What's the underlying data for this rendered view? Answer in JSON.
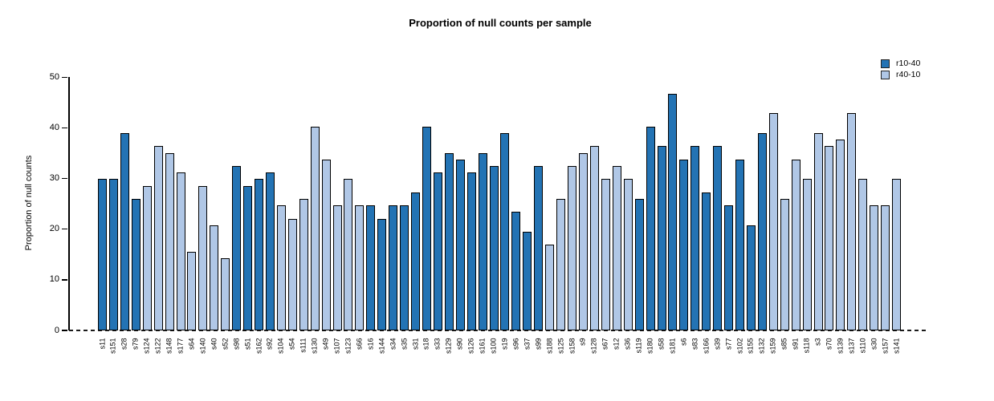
{
  "chart_data": {
    "type": "bar",
    "title": "Proportion of null counts per sample",
    "xlabel": "",
    "ylabel": "Proportion of null counts",
    "ylim": [
      0,
      50
    ],
    "yticks": [
      0,
      10,
      20,
      30,
      40,
      50
    ],
    "grid": false,
    "legend_position": "top-right",
    "zero_line_style": "dashed-black",
    "series": [
      {
        "name": "r10-40",
        "color": "#2373b4"
      },
      {
        "name": "r40-10",
        "color": "#b0c7e6"
      }
    ],
    "bars": [
      {
        "label": "s11",
        "series": "r10-40",
        "value": 29.87
      },
      {
        "label": "s151",
        "series": "r10-40",
        "value": 29.87
      },
      {
        "label": "s28",
        "series": "r10-40",
        "value": 38.96
      },
      {
        "label": "s79",
        "series": "r10-40",
        "value": 25.97
      },
      {
        "label": "s124",
        "series": "r40-10",
        "value": 28.57
      },
      {
        "label": "s122",
        "series": "r40-10",
        "value": 36.36
      },
      {
        "label": "s148",
        "series": "r40-10",
        "value": 35.06
      },
      {
        "label": "s177",
        "series": "r40-10",
        "value": 31.17
      },
      {
        "label": "s64",
        "series": "r40-10",
        "value": 15.58
      },
      {
        "label": "s140",
        "series": "r40-10",
        "value": 28.57
      },
      {
        "label": "s40",
        "series": "r40-10",
        "value": 20.78
      },
      {
        "label": "s52",
        "series": "r40-10",
        "value": 14.29
      },
      {
        "label": "s98",
        "series": "r10-40",
        "value": 32.47
      },
      {
        "label": "s51",
        "series": "r10-40",
        "value": 28.57
      },
      {
        "label": "s162",
        "series": "r10-40",
        "value": 29.87
      },
      {
        "label": "s92",
        "series": "r10-40",
        "value": 31.17
      },
      {
        "label": "s104",
        "series": "r40-10",
        "value": 24.68
      },
      {
        "label": "s54",
        "series": "r40-10",
        "value": 22.08
      },
      {
        "label": "s111",
        "series": "r40-10",
        "value": 25.97
      },
      {
        "label": "s130",
        "series": "r40-10",
        "value": 40.26
      },
      {
        "label": "s49",
        "series": "r40-10",
        "value": 33.77
      },
      {
        "label": "s107",
        "series": "r40-10",
        "value": 24.68
      },
      {
        "label": "s123",
        "series": "r40-10",
        "value": 29.87
      },
      {
        "label": "s66",
        "series": "r40-10",
        "value": 24.68
      },
      {
        "label": "s16",
        "series": "r10-40",
        "value": 24.68
      },
      {
        "label": "s144",
        "series": "r10-40",
        "value": 22.08
      },
      {
        "label": "s34",
        "series": "r10-40",
        "value": 24.68
      },
      {
        "label": "s35",
        "series": "r10-40",
        "value": 24.68
      },
      {
        "label": "s31",
        "series": "r10-40",
        "value": 27.27
      },
      {
        "label": "s18",
        "series": "r10-40",
        "value": 40.26
      },
      {
        "label": "s33",
        "series": "r10-40",
        "value": 31.17
      },
      {
        "label": "s129",
        "series": "r10-40",
        "value": 35.06
      },
      {
        "label": "s90",
        "series": "r10-40",
        "value": 33.77
      },
      {
        "label": "s126",
        "series": "r10-40",
        "value": 31.17
      },
      {
        "label": "s161",
        "series": "r10-40",
        "value": 35.06
      },
      {
        "label": "s100",
        "series": "r10-40",
        "value": 32.47
      },
      {
        "label": "s19",
        "series": "r10-40",
        "value": 38.96
      },
      {
        "label": "s96",
        "series": "r10-40",
        "value": 23.38
      },
      {
        "label": "s37",
        "series": "r10-40",
        "value": 19.48
      },
      {
        "label": "s99",
        "series": "r10-40",
        "value": 32.47
      },
      {
        "label": "s188",
        "series": "r40-10",
        "value": 16.88
      },
      {
        "label": "s125",
        "series": "r40-10",
        "value": 25.97
      },
      {
        "label": "s158",
        "series": "r40-10",
        "value": 32.47
      },
      {
        "label": "s9",
        "series": "r40-10",
        "value": 35.06
      },
      {
        "label": "s128",
        "series": "r40-10",
        "value": 36.36
      },
      {
        "label": "s67",
        "series": "r40-10",
        "value": 29.87
      },
      {
        "label": "s12",
        "series": "r40-10",
        "value": 32.47
      },
      {
        "label": "s36",
        "series": "r40-10",
        "value": 29.87
      },
      {
        "label": "s119",
        "series": "r10-40",
        "value": 25.97
      },
      {
        "label": "s180",
        "series": "r10-40",
        "value": 40.26
      },
      {
        "label": "s58",
        "series": "r10-40",
        "value": 36.36
      },
      {
        "label": "s181",
        "series": "r10-40",
        "value": 46.75
      },
      {
        "label": "s6",
        "series": "r10-40",
        "value": 33.77
      },
      {
        "label": "s83",
        "series": "r10-40",
        "value": 36.36
      },
      {
        "label": "s166",
        "series": "r10-40",
        "value": 27.27
      },
      {
        "label": "s39",
        "series": "r10-40",
        "value": 36.36
      },
      {
        "label": "s77",
        "series": "r10-40",
        "value": 24.68
      },
      {
        "label": "s102",
        "series": "r10-40",
        "value": 33.77
      },
      {
        "label": "s155",
        "series": "r10-40",
        "value": 20.78
      },
      {
        "label": "s132",
        "series": "r10-40",
        "value": 38.96
      },
      {
        "label": "s159",
        "series": "r40-10",
        "value": 42.86
      },
      {
        "label": "s85",
        "series": "r40-10",
        "value": 25.97
      },
      {
        "label": "s91",
        "series": "r40-10",
        "value": 33.77
      },
      {
        "label": "s118",
        "series": "r40-10",
        "value": 29.87
      },
      {
        "label": "s3",
        "series": "r40-10",
        "value": 38.96
      },
      {
        "label": "s70",
        "series": "r40-10",
        "value": 36.36
      },
      {
        "label": "s139",
        "series": "r40-10",
        "value": 37.66
      },
      {
        "label": "s137",
        "series": "r40-10",
        "value": 42.86
      },
      {
        "label": "s110",
        "series": "r40-10",
        "value": 29.87
      },
      {
        "label": "s30",
        "series": "r40-10",
        "value": 24.68
      },
      {
        "label": "s157",
        "series": "r40-10",
        "value": 24.68
      },
      {
        "label": "s141",
        "series": "r40-10",
        "value": 29.87
      }
    ]
  }
}
